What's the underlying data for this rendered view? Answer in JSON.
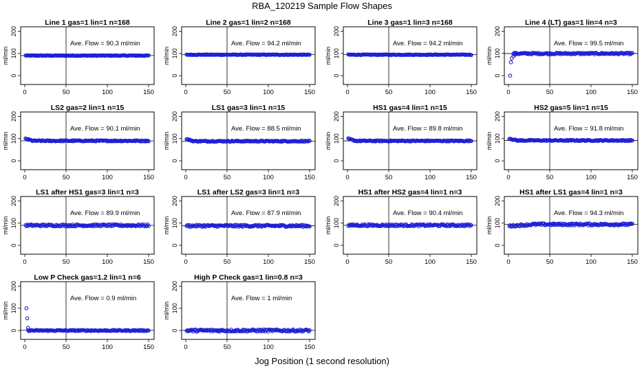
{
  "page": {
    "title": "RBA_120219  Sample Flow Shapes",
    "xlabel": "Jog Position (1 second resolution)",
    "ylabel": "ml/min"
  },
  "style": {
    "point_color": "#1f1fd6",
    "frame_color": "#000000"
  },
  "axes": {
    "x_ticks": [
      "0",
      "50",
      "100",
      "150"
    ],
    "y_ticks": [
      "0",
      "100",
      "200"
    ],
    "xlim": [
      0,
      150
    ],
    "ylim": [
      -40,
      220
    ],
    "vline_x": 50
  },
  "chart_data": [
    {
      "type": "scatter",
      "title": "Line 1 gas=1 lin=1 n=168",
      "annotation": "Ave. Flow = 90.3  ml/min",
      "ave_flow": 90.3,
      "shape": "flat"
    },
    {
      "type": "scatter",
      "title": "Line 2 gas=1 lin=2 n=168",
      "annotation": "Ave. Flow = 94.2  ml/min",
      "ave_flow": 94.2,
      "shape": "flat"
    },
    {
      "type": "scatter",
      "title": "Line 3 gas=1 lin=3 n=168",
      "annotation": "Ave. Flow = 94.2  ml/min",
      "ave_flow": 94.2,
      "shape": "flat"
    },
    {
      "type": "scatter",
      "title": "Line 4 (LT) gas=1 lin=4 n=3",
      "annotation": "Ave. Flow = 99.5  ml/min",
      "ave_flow": 99.5,
      "shape": "ramp_up",
      "start_points": [
        [
          2,
          0
        ],
        [
          3,
          60
        ],
        [
          4,
          78
        ],
        [
          6,
          88
        ],
        [
          8,
          94
        ]
      ]
    },
    {
      "type": "scatter",
      "title": "LS2 gas=2 lin=1 n=15",
      "annotation": "Ave. Flow = 90.1  ml/min",
      "ave_flow": 90.1,
      "shape": "overshoot_start"
    },
    {
      "type": "scatter",
      "title": "LS1 gas=3 lin=1 n=15",
      "annotation": "Ave. Flow = 88.5  ml/min",
      "ave_flow": 88.5,
      "shape": "overshoot_start"
    },
    {
      "type": "scatter",
      "title": "HS1 gas=4 lin=1 n=15",
      "annotation": "Ave. Flow = 89.8  ml/min",
      "ave_flow": 89.8,
      "shape": "overshoot_start"
    },
    {
      "type": "scatter",
      "title": "HS2 gas=5 lin=1 n=15",
      "annotation": "Ave. Flow = 91.8  ml/min",
      "ave_flow": 91.8,
      "shape": "overshoot_start"
    },
    {
      "type": "scatter",
      "title": "LS1 after HS1 gas=3 lin=1 n=3",
      "annotation": "Ave. Flow = 89.9  ml/min",
      "ave_flow": 89.9,
      "shape": "noisy"
    },
    {
      "type": "scatter",
      "title": "LS1 after LS2 gas=3 lin=1 n=3",
      "annotation": "Ave. Flow = 87.9  ml/min",
      "ave_flow": 87.9,
      "shape": "noisy"
    },
    {
      "type": "scatter",
      "title": "HS1 after HS2 gas=4 lin=1 n=3",
      "annotation": "Ave. Flow = 90.4  ml/min",
      "ave_flow": 90.4,
      "shape": "noisy"
    },
    {
      "type": "scatter",
      "title": "HS1 after LS1 gas=4 lin=1 n=3",
      "annotation": "Ave. Flow = 94.3  ml/min",
      "ave_flow": 94.3,
      "shape": "noisy_rise"
    },
    {
      "type": "scatter",
      "title": "Low P Check gas=1.2 lin=1 n=6",
      "annotation": "Ave. Flow = 0.9  ml/min",
      "ave_flow": 0.9,
      "shape": "zero_spike",
      "start_points": [
        [
          2,
          100
        ],
        [
          3,
          55
        ],
        [
          4,
          12
        ]
      ]
    },
    {
      "type": "scatter",
      "title": "High P Check gas=1 lin=0.8 n=3",
      "annotation": "Ave. Flow = 1  ml/min",
      "ave_flow": 1,
      "shape": "zero_noisy"
    }
  ]
}
